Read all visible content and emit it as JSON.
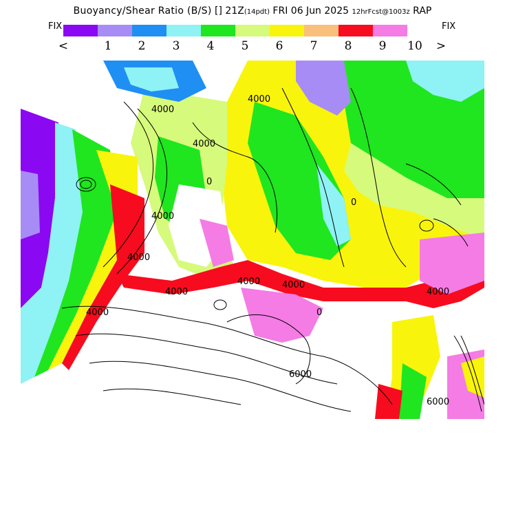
{
  "header": {
    "title_main": "Buoyancy/Shear Ratio (B/S)",
    "title_mid": " [] 21Z",
    "title_small1": "(14pdt)",
    "title_date": " FRI 06 Jun 2025 ",
    "title_small2": "12hrFcst@1003z",
    "title_model": " RAP"
  },
  "legend": {
    "fix_left": "FIX",
    "fix_right": "FIX",
    "less_symbol": "<",
    "greater_symbol": ">",
    "tick_labels": [
      "1",
      "2",
      "3",
      "4",
      "5",
      "6",
      "7",
      "8",
      "9",
      "10"
    ],
    "colors": [
      "#8b08f2",
      "#a78cf5",
      "#1f8ff4",
      "#8ff2f4",
      "#1fe61f",
      "#d6fa7c",
      "#f9f40c",
      "#f8c07a",
      "#f60c1e",
      "#f47ce4"
    ]
  },
  "map": {
    "contour_labels": [
      "4000",
      "4000",
      "4000",
      "4000",
      "4000",
      "4000",
      "4000",
      "4000",
      "4000",
      "4000",
      "6000",
      "6000",
      "0",
      "0",
      "0"
    ]
  }
}
